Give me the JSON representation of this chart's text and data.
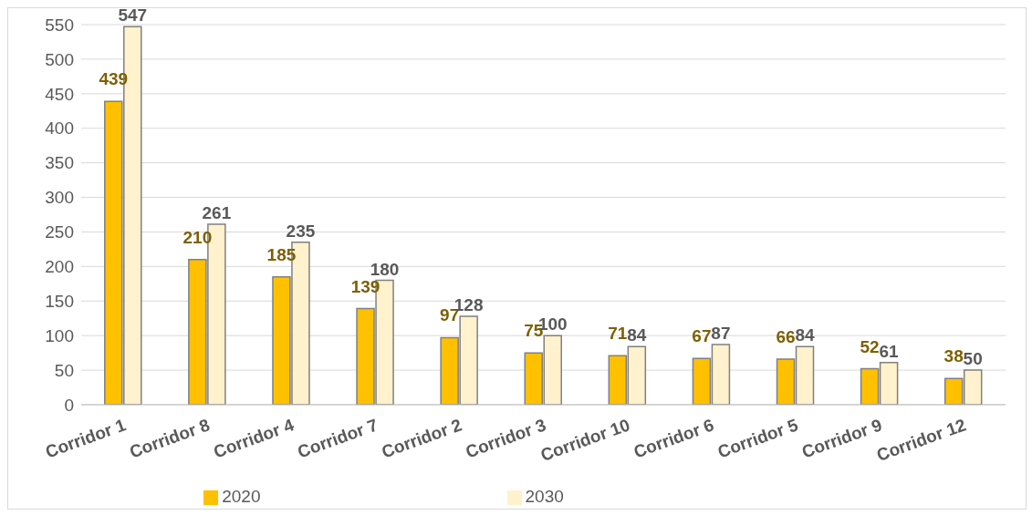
{
  "chart_data": {
    "type": "bar",
    "categories": [
      "Corridor 1",
      "Corridor 8",
      "Corridor 4",
      "Corridor 7",
      "Corridor 2",
      "Corridor 3",
      "Corridor 10",
      "Corridor 6",
      "Corridor 5",
      "Corridor 9",
      "Corridor 12"
    ],
    "series": [
      {
        "name": "2020",
        "color": "#ffc000",
        "values": [
          439,
          210,
          185,
          139,
          97,
          75,
          71,
          67,
          66,
          52,
          38
        ]
      },
      {
        "name": "2030",
        "color": "#fff2cc",
        "values": [
          547,
          261,
          235,
          180,
          128,
          100,
          84,
          87,
          84,
          61,
          50
        ]
      }
    ],
    "ylim": [
      0,
      550
    ],
    "yticks": [
      0,
      50,
      100,
      150,
      200,
      250,
      300,
      350,
      400,
      450,
      500,
      550
    ],
    "grid": "y",
    "legend": "bottom",
    "data_labels": true
  }
}
